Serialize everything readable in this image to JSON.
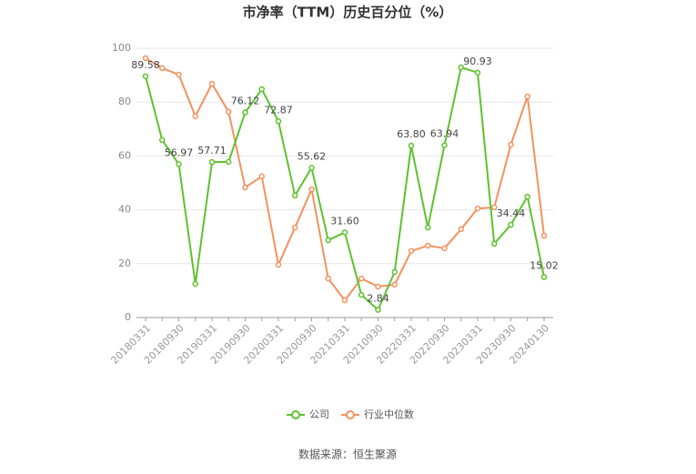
{
  "chart_data": {
    "type": "line",
    "title": "市净率（TTM）历史百分位（%）",
    "categories": [
      "20180331",
      null,
      "20180930",
      null,
      "20190331",
      null,
      "20190930",
      null,
      "20200331",
      null,
      "20200930",
      null,
      "20210331",
      null,
      "20210930",
      null,
      "20220331",
      null,
      "20220930",
      null,
      "20230331",
      null,
      "20230930",
      null,
      "20240130"
    ],
    "series": [
      {
        "name": "公司",
        "color": "#5cc22e",
        "values": [
          89.58,
          65.9,
          56.97,
          12.5,
          57.71,
          57.8,
          76.12,
          84.8,
          72.87,
          45.3,
          55.62,
          28.7,
          31.6,
          8.4,
          2.84,
          16.9,
          63.8,
          33.4,
          63.94,
          92.9,
          90.93,
          27.4,
          34.44,
          44.9,
          15.02
        ],
        "value_labels": [
          "89.58",
          null,
          "56.97",
          null,
          "57.71",
          null,
          "76.12",
          null,
          "72.87",
          null,
          "55.62",
          null,
          "31.60",
          null,
          "2.84",
          null,
          "63.80",
          null,
          "63.94",
          null,
          "90.93",
          null,
          "34.44",
          null,
          "15.02"
        ]
      },
      {
        "name": "行业中位数",
        "color": "#f4915e",
        "values": [
          96.3,
          92.6,
          90.2,
          74.7,
          86.8,
          76.4,
          48.3,
          52.4,
          19.6,
          33.4,
          47.6,
          14.5,
          6.4,
          14.5,
          11.5,
          12.2,
          24.7,
          26.7,
          25.7,
          32.8,
          40.5,
          40.9,
          64.2,
          82.1,
          30.4
        ]
      }
    ],
    "ylim": [
      0,
      100
    ],
    "yticks": [
      0,
      20,
      40,
      60,
      80,
      100
    ],
    "grid": true,
    "source": "数据来源：恒生聚源"
  }
}
